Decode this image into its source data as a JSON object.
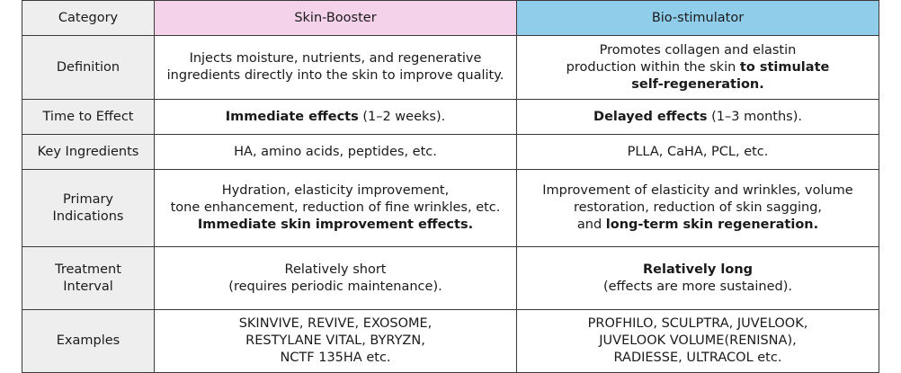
{
  "header": {
    "category": "Category",
    "skin_booster": "Skin-Booster",
    "bio_stimulator": "Bio-stimulator"
  },
  "rows": {
    "definition": {
      "category": "Definition",
      "sb_line1": "Injects moisture, nutrients, and regenerative",
      "sb_line2": "ingredients directly into the skin to improve quality.",
      "bs_line1": "Promotes collagen and elastin",
      "bs_line2_plain": "production within the skin ",
      "bs_line2_bold": "to stimulate",
      "bs_line3_bold": "self-regeneration."
    },
    "time_to_effect": {
      "category": "Time to Effect",
      "sb_bold": "Immediate effects",
      "sb_plain": " (1–2 weeks).",
      "bs_bold": "Delayed effects",
      "bs_plain": " (1–3 months)."
    },
    "key_ingredients": {
      "category": "Key Ingredients",
      "sb": "HA, amino acids, peptides, etc.",
      "bs": "PLLA, CaHA, PCL, etc."
    },
    "primary_indications": {
      "category_line1": "Primary",
      "category_line2": "Indications",
      "sb_line1": "Hydration, elasticity improvement,",
      "sb_line2": "tone enhancement, reduction of fine wrinkles, etc.",
      "sb_line3_bold": "Immediate skin improvement effects.",
      "bs_line1": "Improvement of elasticity and wrinkles, volume",
      "bs_line2": "restoration, reduction of skin sagging,",
      "bs_line3_plain": "and ",
      "bs_line3_bold": "long-term skin regeneration."
    },
    "treatment_interval": {
      "category_line1": "Treatment",
      "category_line2": "Interval",
      "sb_line1": "Relatively short",
      "sb_line2": "(requires periodic maintenance).",
      "bs_line1_bold": "Relatively long",
      "bs_line2": "(effects are more sustained)."
    },
    "examples": {
      "category": "Examples",
      "sb_line1": "SKINVIVE, REVIVE, EXOSOME,",
      "sb_line2": "RESTYLANE VITAL, BYRYZN,",
      "sb_line3": "NCTF 135HA etc.",
      "bs_line1": "PROFHILO, SCULPTRA, JUVELOOK,",
      "bs_line2": "JUVELOOK VOLUME(RENISNA),",
      "bs_line3": "RADIESSE, ULTRACOL etc."
    }
  },
  "colors": {
    "skin_booster_header": "#f4d2ea",
    "bio_stimulator_header": "#8fcdeb",
    "category_column": "#eeeeee",
    "border": "#3a3a3a"
  }
}
